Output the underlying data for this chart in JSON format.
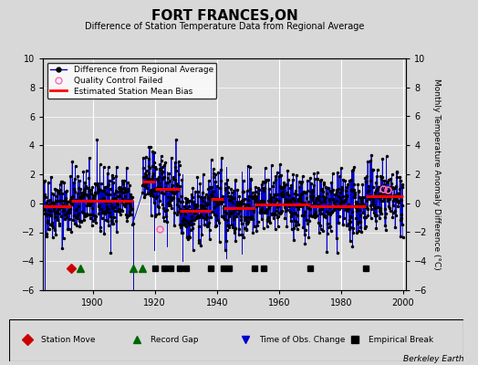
{
  "title": "FORT FRANCES,ON",
  "subtitle": "Difference of Station Temperature Data from Regional Average",
  "ylabel": "Monthly Temperature Anomaly Difference (°C)",
  "xlim": [
    1884,
    2001
  ],
  "ylim": [
    -6,
    10
  ],
  "yticks": [
    -6,
    -4,
    -2,
    0,
    2,
    4,
    6,
    8,
    10
  ],
  "xticks": [
    1900,
    1920,
    1940,
    1960,
    1980,
    2000
  ],
  "bg_color": "#d8d8d8",
  "plot_bg": "#d8d8d8",
  "data_color": "#0000cc",
  "point_color": "#000000",
  "bias_color": "#ff0000",
  "qc_color": "#ff69b4",
  "grid_color": "#ffffff",
  "seed": 42,
  "station_moves": [
    1893
  ],
  "record_gaps": [
    1896,
    1913,
    1916
  ],
  "time_obs_changes": [],
  "empirical_breaks": [
    1920,
    1923,
    1925,
    1928,
    1930,
    1938,
    1942,
    1944,
    1952,
    1955,
    1970,
    1988
  ],
  "bias_segments": [
    {
      "start": 1884,
      "end": 1893,
      "bias": -0.2
    },
    {
      "start": 1893,
      "end": 1913,
      "bias": 0.15
    },
    {
      "start": 1916,
      "end": 1920,
      "bias": 1.5
    },
    {
      "start": 1920,
      "end": 1928,
      "bias": 1.0
    },
    {
      "start": 1928,
      "end": 1938,
      "bias": -0.5
    },
    {
      "start": 1938,
      "end": 1942,
      "bias": 0.3
    },
    {
      "start": 1942,
      "end": 1952,
      "bias": -0.3
    },
    {
      "start": 1952,
      "end": 1970,
      "bias": -0.1
    },
    {
      "start": 1970,
      "end": 1988,
      "bias": -0.2
    },
    {
      "start": 1988,
      "end": 2000,
      "bias": 0.5
    }
  ],
  "gap_periods": [
    {
      "start": 1913,
      "end": 1916
    }
  ],
  "qc_failed": [
    {
      "year": 1921.5,
      "value": -1.8
    },
    {
      "year": 1993.5,
      "value": 1.0
    },
    {
      "year": 1995.0,
      "value": 0.9
    }
  ],
  "marker_y": -4.5,
  "legend_bottom_items": [
    {
      "label": "Station Move",
      "marker": "D",
      "color": "#cc0000"
    },
    {
      "label": "Record Gap",
      "marker": "^",
      "color": "#006600"
    },
    {
      "label": "Time of Obs. Change",
      "marker": "v",
      "color": "#0000cc"
    },
    {
      "label": "Empirical Break",
      "marker": "s",
      "color": "#000000"
    }
  ]
}
